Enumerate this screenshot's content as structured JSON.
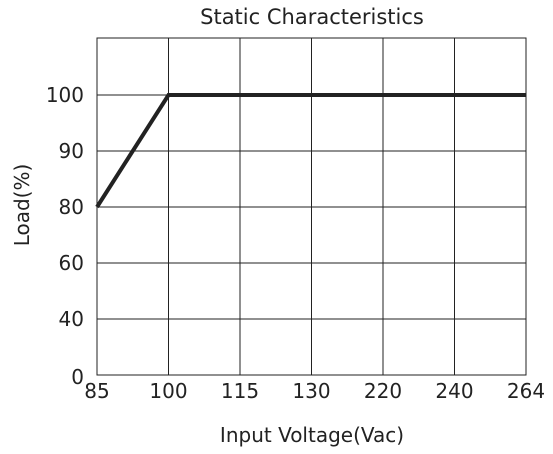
{
  "chart_data": {
    "type": "line",
    "title": "Static Characteristics",
    "xlabel": "Input Voltage(Vac)",
    "ylabel": "Load(%)",
    "x_ticks": [
      "85",
      "100",
      "115",
      "130",
      "220",
      "240",
      "264"
    ],
    "y_ticks": [
      "0",
      "40",
      "60",
      "80",
      "90",
      "100"
    ],
    "ylim": [
      0,
      100
    ],
    "grid": true,
    "series": [
      {
        "x": [
          "85",
          "100",
          "264"
        ],
        "y": [
          80,
          100,
          100
        ]
      }
    ]
  }
}
